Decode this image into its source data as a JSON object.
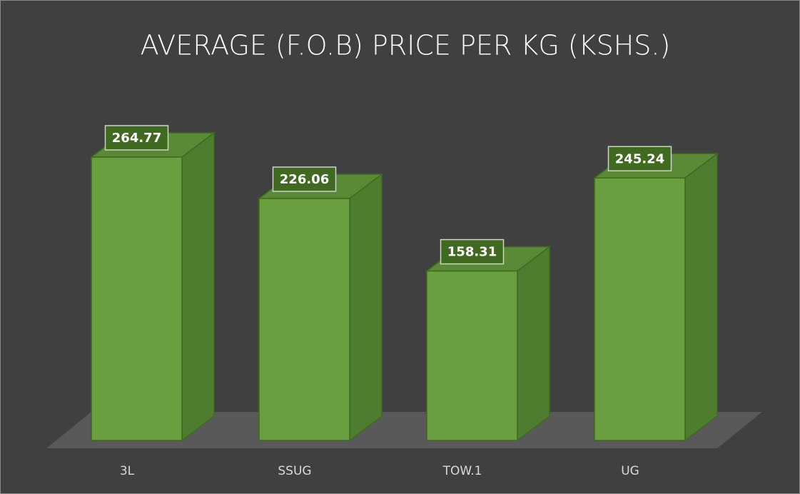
{
  "chart_data": {
    "type": "bar3d",
    "title": "AVERAGE (F.O.B) PRICE PER KG (KSHS.)",
    "categories": [
      "3L",
      "SSUG",
      "TOW.1",
      "UG"
    ],
    "values": [
      264.77,
      226.06,
      158.31,
      245.24
    ],
    "color": "#6a9f40"
  }
}
